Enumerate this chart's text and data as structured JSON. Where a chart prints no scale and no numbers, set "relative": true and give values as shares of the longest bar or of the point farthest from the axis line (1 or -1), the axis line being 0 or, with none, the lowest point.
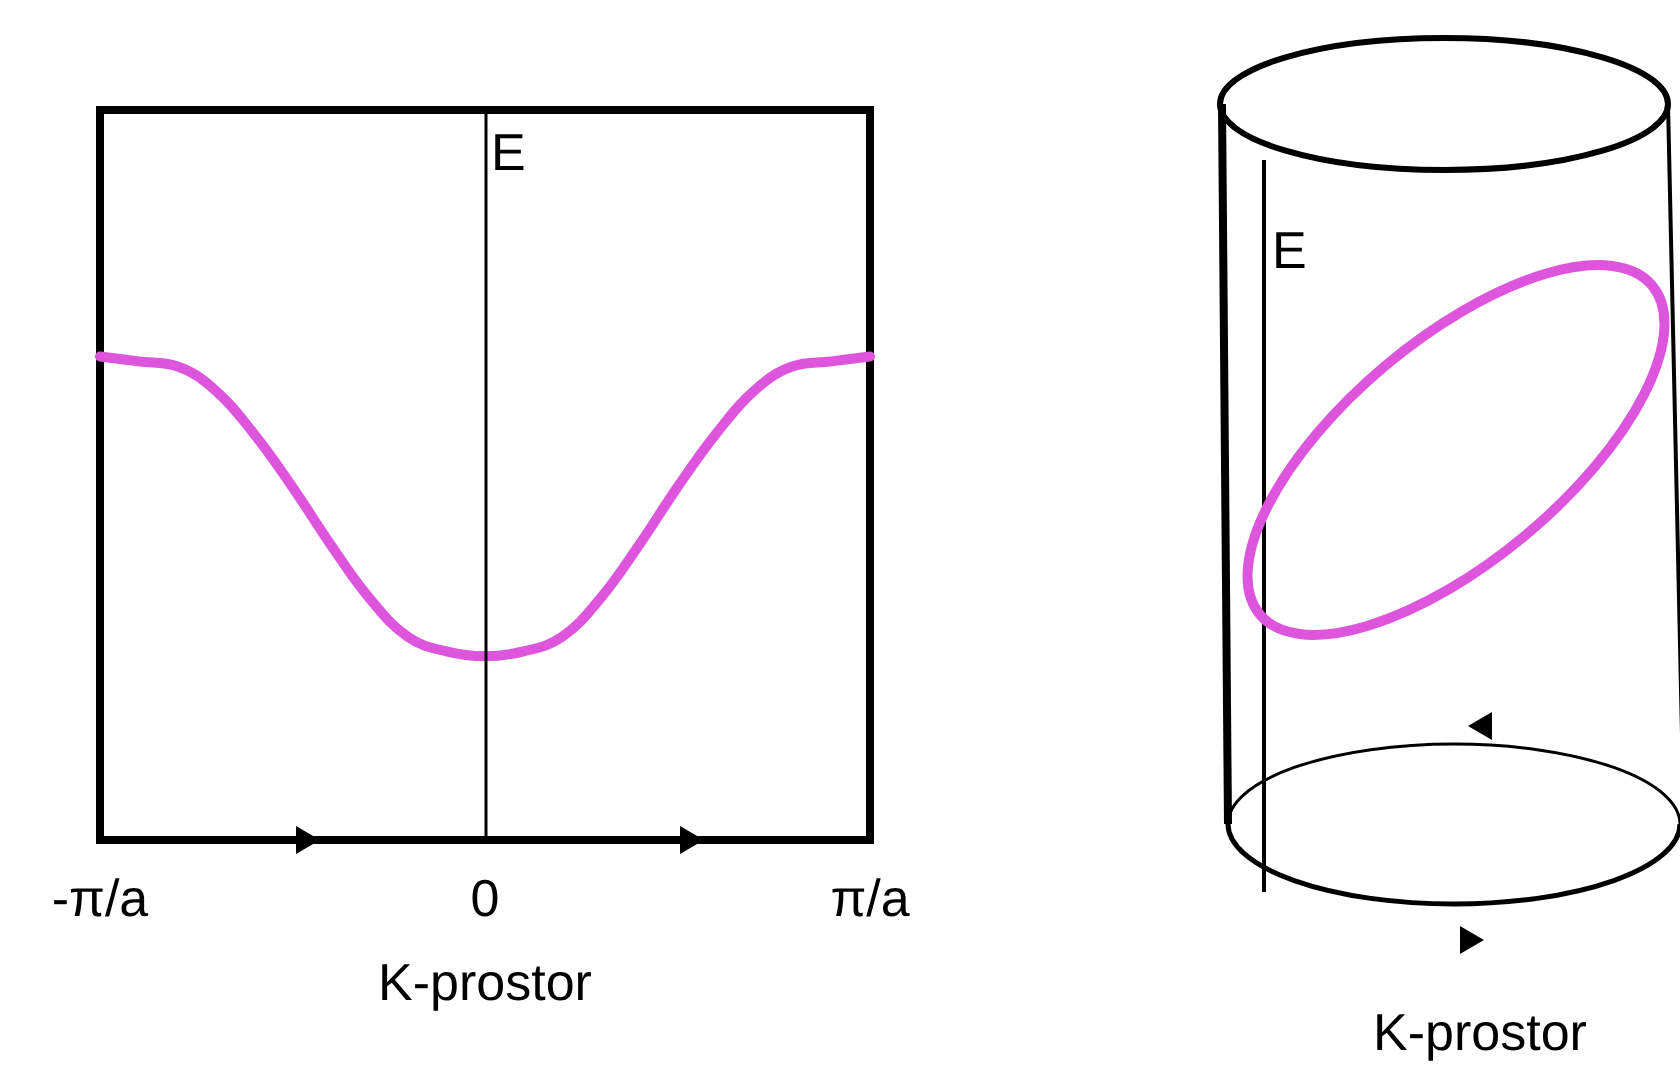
{
  "chart_data": [
    {
      "type": "line",
      "relative": true,
      "color": "#dd55dd",
      "xlabel": "K-prostor",
      "ylabel": "E",
      "categories": [
        "-π/a",
        null,
        null,
        null,
        null,
        null,
        null,
        null,
        null,
        null,
        "0",
        null,
        null,
        null,
        null,
        null,
        null,
        null,
        null,
        null,
        "π/a"
      ],
      "values": [
        1,
        0.99,
        0.98,
        0.93,
        0.84,
        0.73,
        0.61,
        0.5,
        0.42,
        0.39,
        0.38,
        0.39,
        0.42,
        0.5,
        0.61,
        0.73,
        0.84,
        0.93,
        0.98,
        0.99,
        1
      ],
      "ref_lines": [
        {
          "axis": "x",
          "value": "0"
        }
      ]
    },
    {
      "type": "other",
      "xlabel": "K-prostor",
      "ylabel": "E"
    }
  ]
}
